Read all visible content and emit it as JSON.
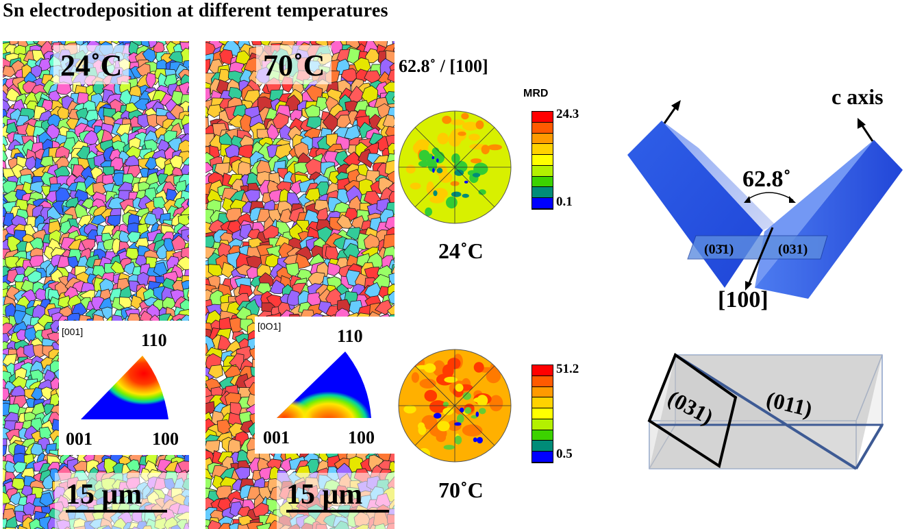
{
  "title": "Sn electrodeposition at different temperatures",
  "maps": [
    {
      "temperature": "24˚C",
      "scale": "15 μm",
      "ipf": {
        "corner_label": "[001]",
        "top": "110",
        "left": "001",
        "right": "100"
      }
    },
    {
      "temperature": "70˚C",
      "scale": "15 μm",
      "ipf": {
        "corner_label": "[0O1]",
        "top": "110",
        "left": "001",
        "right": "100"
      }
    }
  ],
  "misorientation_label": "62.8˚ / [100]",
  "pole_figures": [
    {
      "caption": "24˚C",
      "legend_title": "MRD",
      "max": "24.3",
      "min": "0.1"
    },
    {
      "caption": "70˚C",
      "max": "51.2",
      "min": "0.5"
    }
  ],
  "legend_colors": [
    "#ff0000",
    "#ff5a00",
    "#ff9a00",
    "#ffd200",
    "#ffff00",
    "#b4f000",
    "#3cd200",
    "#008c78",
    "#0000ff"
  ],
  "schematic": {
    "c_axis": "c axis",
    "angle": "62.8˚",
    "plane_left": "(03̄1)",
    "plane_right": "(031)",
    "direction": "[100]"
  },
  "box_diagram": {
    "plane_a": "(031)",
    "plane_b": "(011)"
  }
}
